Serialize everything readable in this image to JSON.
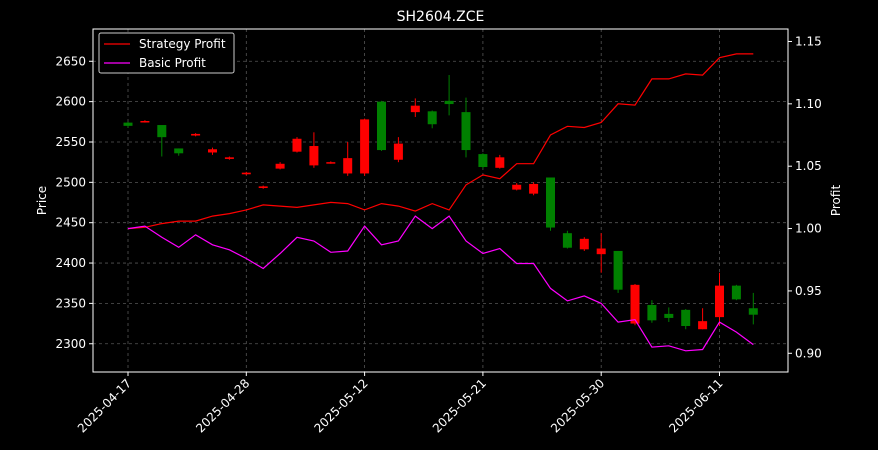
{
  "chart_data": {
    "type": "candlestick",
    "title": "SH2604.ZCE",
    "ylabel_left": "Price",
    "ylabel_right": "Profit",
    "ylim_left": [
      2265,
      2690
    ],
    "ylim_right": [
      0.885,
      1.16
    ],
    "grid": true,
    "legend_position": "top-left",
    "yticks_left": [
      2300,
      2350,
      2400,
      2450,
      2500,
      2550,
      2600,
      2650
    ],
    "yticks_right": [
      0.9,
      0.95,
      1.0,
      1.05,
      1.1,
      1.15
    ],
    "ytick_labels_left": [
      "2300",
      "2350",
      "2400",
      "2450",
      "2500",
      "2550",
      "2600",
      "2650"
    ],
    "ytick_labels_right": [
      "0.90",
      "0.95",
      "1.00",
      "1.05",
      "1.10",
      "1.15"
    ],
    "xtick_labels": [
      "2025-04-17",
      "2025-04-28",
      "2025-05-12",
      "2025-05-21",
      "2025-05-30",
      "2025-06-11"
    ],
    "xtick_index": [
      0,
      7,
      14,
      21,
      28,
      35
    ],
    "up_color": "#008000",
    "down_color": "#ff0000",
    "candles": [
      {
        "o": 2570,
        "h": 2575,
        "l": 2568,
        "c": 2574
      },
      {
        "o": 2576,
        "h": 2577,
        "l": 2574,
        "c": 2575
      },
      {
        "o": 2556,
        "h": 2570,
        "l": 2532,
        "c": 2571
      },
      {
        "o": 2536,
        "h": 2542,
        "l": 2533,
        "c": 2542
      },
      {
        "o": 2560,
        "h": 2561,
        "l": 2557,
        "c": 2558
      },
      {
        "o": 2541,
        "h": 2543,
        "l": 2534,
        "c": 2537
      },
      {
        "o": 2531,
        "h": 2532,
        "l": 2528,
        "c": 2529
      },
      {
        "o": 2512,
        "h": 2513,
        "l": 2509,
        "c": 2510
      },
      {
        "o": 2495,
        "h": 2496,
        "l": 2492,
        "c": 2493
      },
      {
        "o": 2523,
        "h": 2525,
        "l": 2516,
        "c": 2517
      },
      {
        "o": 2554,
        "h": 2556,
        "l": 2537,
        "c": 2538
      },
      {
        "o": 2545,
        "h": 2562,
        "l": 2518,
        "c": 2521
      },
      {
        "o": 2525,
        "h": 2526,
        "l": 2523,
        "c": 2524
      },
      {
        "o": 2530,
        "h": 2550,
        "l": 2508,
        "c": 2511
      },
      {
        "o": 2578,
        "h": 2579,
        "l": 2508,
        "c": 2511
      },
      {
        "o": 2540,
        "h": 2601,
        "l": 2539,
        "c": 2600
      },
      {
        "o": 2548,
        "h": 2556,
        "l": 2525,
        "c": 2528
      },
      {
        "o": 2595,
        "h": 2604,
        "l": 2581,
        "c": 2587
      },
      {
        "o": 2572,
        "h": 2589,
        "l": 2567,
        "c": 2588
      },
      {
        "o": 2597,
        "h": 2633,
        "l": 2583,
        "c": 2601
      },
      {
        "o": 2540,
        "h": 2605,
        "l": 2531,
        "c": 2587
      },
      {
        "o": 2519,
        "h": 2536,
        "l": 2517,
        "c": 2535
      },
      {
        "o": 2531,
        "h": 2534,
        "l": 2517,
        "c": 2518
      },
      {
        "o": 2497,
        "h": 2499,
        "l": 2490,
        "c": 2491
      },
      {
        "o": 2498,
        "h": 2500,
        "l": 2484,
        "c": 2486
      },
      {
        "o": 2444,
        "h": 2506,
        "l": 2440,
        "c": 2506
      },
      {
        "o": 2419,
        "h": 2440,
        "l": 2418,
        "c": 2437
      },
      {
        "o": 2430,
        "h": 2432,
        "l": 2415,
        "c": 2417
      },
      {
        "o": 2418,
        "h": 2437,
        "l": 2388,
        "c": 2411
      },
      {
        "o": 2367,
        "h": 2415,
        "l": 2363,
        "c": 2415
      },
      {
        "o": 2373,
        "h": 2374,
        "l": 2323,
        "c": 2325
      },
      {
        "o": 2329,
        "h": 2354,
        "l": 2326,
        "c": 2348
      },
      {
        "o": 2332,
        "h": 2345,
        "l": 2327,
        "c": 2337
      },
      {
        "o": 2322,
        "h": 2343,
        "l": 2318,
        "c": 2342
      },
      {
        "o": 2328,
        "h": 2344,
        "l": 2318,
        "c": 2318
      },
      {
        "o": 2372,
        "h": 2388,
        "l": 2322,
        "c": 2333
      },
      {
        "o": 2355,
        "h": 2373,
        "l": 2354,
        "c": 2372
      },
      {
        "o": 2336,
        "h": 2363,
        "l": 2324,
        "c": 2344
      }
    ],
    "series": [
      {
        "name": "Strategy Profit",
        "color": "#ff0000",
        "values": [
          1.0,
          1.001,
          1.004,
          1.006,
          1.006,
          1.01,
          1.012,
          1.015,
          1.019,
          1.018,
          1.017,
          1.019,
          1.021,
          1.02,
          1.015,
          1.02,
          1.018,
          1.014,
          1.02,
          1.015,
          1.035,
          1.043,
          1.04,
          1.052,
          1.052,
          1.075,
          1.082,
          1.081,
          1.085,
          1.1,
          1.099,
          1.12,
          1.12,
          1.124,
          1.123,
          1.137,
          1.14,
          1.14
        ]
      },
      {
        "name": "Basic Profit",
        "color": "#ff00ff",
        "values": [
          1.0,
          1.002,
          0.993,
          0.985,
          0.995,
          0.987,
          0.983,
          0.976,
          0.968,
          0.98,
          0.993,
          0.99,
          0.981,
          0.982,
          1.002,
          0.987,
          0.99,
          1.01,
          1.0,
          1.01,
          0.99,
          0.98,
          0.984,
          0.972,
          0.972,
          0.952,
          0.942,
          0.946,
          0.94,
          0.925,
          0.927,
          0.905,
          0.906,
          0.902,
          0.903,
          0.925,
          0.917,
          0.907
        ]
      }
    ]
  }
}
